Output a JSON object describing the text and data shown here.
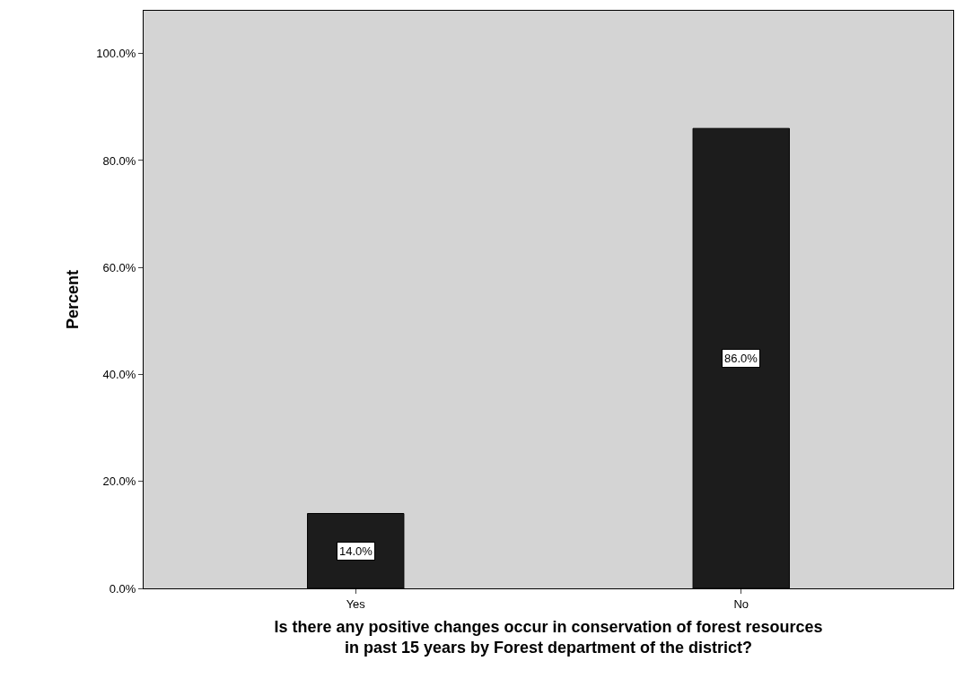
{
  "chart_data": {
    "type": "bar",
    "xlabel": "Is there any positive changes occur in conservation of forest resources\nin past 15 years by Forest department of the district?",
    "ylabel": "Percent",
    "categories": [
      "Yes",
      "No"
    ],
    "values": [
      14.0,
      86.0
    ],
    "value_labels": [
      "14.0%",
      "86.0%"
    ],
    "color": "#1c1c1c",
    "ylim": [
      0,
      108
    ],
    "yticks": [
      {
        "value": 0,
        "label": "0.0%"
      },
      {
        "value": 20,
        "label": "20.0%"
      },
      {
        "value": 40,
        "label": "40.0%"
      },
      {
        "value": 60,
        "label": "60.0%"
      },
      {
        "value": 80,
        "label": "80.0%"
      },
      {
        "value": 100,
        "label": "100.0%"
      }
    ],
    "grid": false,
    "legend": false
  }
}
